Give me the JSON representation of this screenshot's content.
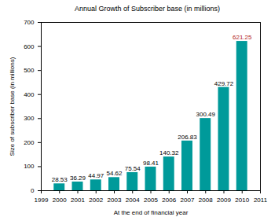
{
  "chart_data": {
    "type": "bar",
    "title": "Annual Growth of Subscriber base (in millions)",
    "x_label": "At the end of financial year",
    "y_label": "Size of subscriber base (in millions)",
    "x": [
      2000,
      2001,
      2002,
      2003,
      2004,
      2005,
      2006,
      2007,
      2008,
      2009,
      2010
    ],
    "values": [
      28.53,
      36.29,
      44.97,
      54.62,
      75.54,
      98.41,
      140.32,
      206.83,
      300.49,
      429.72,
      621.25
    ],
    "color": "#009a9a",
    "xlim": [
      1999,
      2011
    ],
    "xticks": [
      1999,
      2000,
      2001,
      2002,
      2003,
      2004,
      2005,
      2006,
      2007,
      2008,
      2009,
      2010,
      2011
    ],
    "ylim": [
      0,
      700
    ],
    "yticks": [
      0,
      100,
      200,
      300,
      400,
      500,
      600,
      700
    ],
    "data_labels": true
  }
}
